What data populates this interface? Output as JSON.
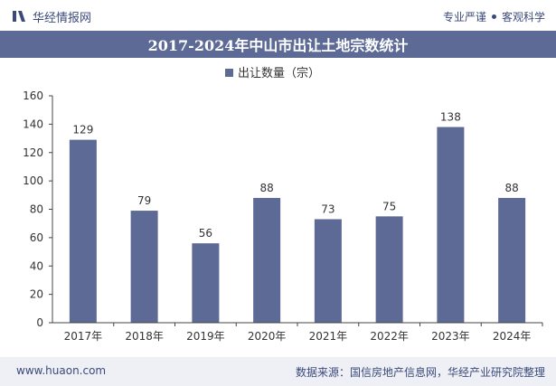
{
  "header": {
    "brand_name": "华经情报网",
    "tagline_left": "专业严谨",
    "tagline_right": "客观科学"
  },
  "chart_data": {
    "type": "bar",
    "title": "2017-2024年中山市出让土地宗数统计",
    "categories": [
      "2017年",
      "2018年",
      "2019年",
      "2020年",
      "2021年",
      "2022年",
      "2023年",
      "2024年"
    ],
    "series": [
      {
        "name": "出让数量（宗）",
        "values": [
          129,
          79,
          56,
          88,
          73,
          75,
          138,
          88
        ]
      }
    ],
    "ylim": [
      0,
      160
    ],
    "yticks": [
      0,
      20,
      40,
      60,
      80,
      100,
      120,
      140,
      160
    ],
    "legend_position": "top-center",
    "grid": false,
    "bar_color": "#5d6a96"
  },
  "footer": {
    "website": "www.huaon.com",
    "source": "数据来源：国信房地产信息网，华经产业研究院整理"
  }
}
